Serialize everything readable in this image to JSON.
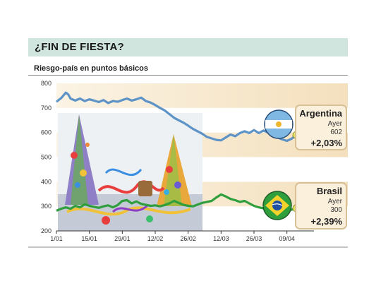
{
  "header": {
    "title": "¿FIN DE FIESTA?",
    "subtitle": "Riesgo-país en puntos básicos"
  },
  "illustration": {
    "name": "party-hats-photo-icon"
  },
  "colors": {
    "title_band": "#cfe5dd",
    "band_light": "#fbf3e4",
    "band_mid": "#f6e6c8",
    "argentina_line": "#5d93c6",
    "brasil_line": "#2f9e3c",
    "marker_dot": "#e6ea5c",
    "box_border": "#d8c096",
    "box_fill": "#fbf0dc"
  },
  "chart_data": {
    "type": "line",
    "title": "¿FIN DE FIESTA?",
    "subtitle": "Riesgo-país en puntos básicos",
    "x": [
      "1/01",
      "15/01",
      "29/01",
      "12/02",
      "26/02",
      "12/03",
      "26/03",
      "09/04"
    ],
    "x_day_index": [
      0,
      14,
      28,
      42,
      56,
      70,
      84,
      98
    ],
    "ylim": [
      200,
      800
    ],
    "yticks": [
      200,
      300,
      400,
      500,
      600,
      700,
      800
    ],
    "grid": false,
    "series": [
      {
        "name": "Argentina",
        "color": "#5d93c6",
        "points": [
          [
            0,
            725
          ],
          [
            2,
            740
          ],
          [
            4,
            762
          ],
          [
            5,
            755
          ],
          [
            6,
            738
          ],
          [
            8,
            730
          ],
          [
            10,
            738
          ],
          [
            12,
            728
          ],
          [
            14,
            735
          ],
          [
            16,
            730
          ],
          [
            18,
            724
          ],
          [
            20,
            732
          ],
          [
            22,
            720
          ],
          [
            24,
            728
          ],
          [
            26,
            725
          ],
          [
            28,
            732
          ],
          [
            30,
            738
          ],
          [
            32,
            730
          ],
          [
            34,
            735
          ],
          [
            36,
            742
          ],
          [
            38,
            728
          ],
          [
            40,
            722
          ],
          [
            42,
            712
          ],
          [
            44,
            700
          ],
          [
            46,
            690
          ],
          [
            48,
            675
          ],
          [
            50,
            660
          ],
          [
            52,
            650
          ],
          [
            54,
            640
          ],
          [
            56,
            628
          ],
          [
            58,
            615
          ],
          [
            60,
            605
          ],
          [
            62,
            595
          ],
          [
            64,
            582
          ],
          [
            66,
            576
          ],
          [
            68,
            570
          ],
          [
            70,
            568
          ],
          [
            72,
            580
          ],
          [
            74,
            592
          ],
          [
            76,
            585
          ],
          [
            78,
            598
          ],
          [
            80,
            605
          ],
          [
            82,
            598
          ],
          [
            84,
            610
          ],
          [
            86,
            598
          ],
          [
            88,
            608
          ],
          [
            90,
            600
          ],
          [
            92,
            590
          ],
          [
            94,
            580
          ],
          [
            96,
            572
          ],
          [
            98,
            566
          ],
          [
            100,
            575
          ],
          [
            102,
            590
          ]
        ]
      },
      {
        "name": "Brasil",
        "color": "#2f9e3c",
        "points": [
          [
            0,
            282
          ],
          [
            2,
            290
          ],
          [
            4,
            296
          ],
          [
            6,
            290
          ],
          [
            8,
            302
          ],
          [
            10,
            296
          ],
          [
            12,
            308
          ],
          [
            14,
            302
          ],
          [
            16,
            298
          ],
          [
            18,
            294
          ],
          [
            20,
            300
          ],
          [
            22,
            304
          ],
          [
            24,
            296
          ],
          [
            26,
            305
          ],
          [
            28,
            322
          ],
          [
            30,
            325
          ],
          [
            32,
            312
          ],
          [
            34,
            320
          ],
          [
            36,
            310
          ],
          [
            38,
            306
          ],
          [
            40,
            302
          ],
          [
            42,
            304
          ],
          [
            44,
            300
          ],
          [
            46,
            305
          ],
          [
            48,
            312
          ],
          [
            50,
            322
          ],
          [
            52,
            314
          ],
          [
            54,
            306
          ],
          [
            56,
            302
          ],
          [
            58,
            300
          ],
          [
            60,
            307
          ],
          [
            62,
            314
          ],
          [
            64,
            318
          ],
          [
            66,
            322
          ],
          [
            68,
            336
          ],
          [
            70,
            348
          ],
          [
            72,
            340
          ],
          [
            74,
            330
          ],
          [
            76,
            325
          ],
          [
            78,
            318
          ],
          [
            80,
            322
          ],
          [
            82,
            312
          ],
          [
            84,
            302
          ],
          [
            86,
            296
          ],
          [
            88,
            292
          ],
          [
            90,
            296
          ],
          [
            92,
            292
          ],
          [
            94,
            288
          ],
          [
            96,
            284
          ],
          [
            98,
            288
          ],
          [
            100,
            286
          ],
          [
            102,
            292
          ]
        ]
      }
    ],
    "annotations": [
      {
        "country": "Argentina",
        "label": "Ayer",
        "value": "602",
        "change": "+2,03%"
      },
      {
        "country": "Brasil",
        "label": "Ayer",
        "value": "300",
        "change": "+2,39%"
      }
    ]
  }
}
